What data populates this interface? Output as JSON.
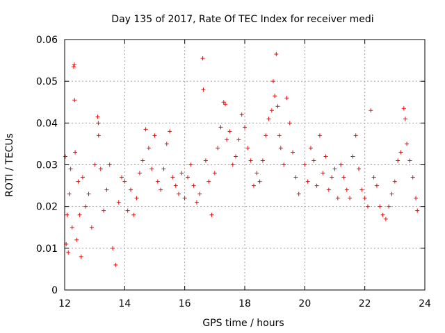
{
  "chart_data": {
    "type": "scatter",
    "title": "Day 135 of 2017, Rate Of TEC Index for receiver medi",
    "xlabel": "GPS time / hours",
    "ylabel": "ROTI / TECUs",
    "xlim": [
      12,
      24
    ],
    "ylim": [
      0,
      0.06
    ],
    "xticks": [
      12,
      14,
      16,
      18,
      20,
      22,
      24
    ],
    "yticks": [
      0,
      0.01,
      0.02,
      0.03,
      0.04,
      0.05,
      0.06
    ],
    "xtick_labels": [
      "12",
      "14",
      "16",
      "18",
      "20",
      "22",
      "24"
    ],
    "ytick_labels": [
      "0",
      "0.01",
      "0.02",
      "0.03",
      "0.04",
      "0.05",
      "0.06"
    ],
    "grid": true,
    "marker": "+",
    "color": "#ff0000",
    "series": [
      {
        "name": "ROTI",
        "points": [
          [
            12.02,
            0.032
          ],
          [
            12.05,
            0.011
          ],
          [
            12.08,
            0.018
          ],
          [
            12.12,
            0.009
          ],
          [
            12.15,
            0.023
          ],
          [
            12.2,
            0.029
          ],
          [
            12.25,
            0.015
          ],
          [
            12.3,
            0.0535
          ],
          [
            12.32,
            0.054
          ],
          [
            12.33,
            0.0455
          ],
          [
            12.35,
            0.033
          ],
          [
            12.4,
            0.012
          ],
          [
            12.45,
            0.026
          ],
          [
            12.5,
            0.018
          ],
          [
            12.55,
            0.008
          ],
          [
            12.6,
            0.027
          ],
          [
            12.7,
            0.02
          ],
          [
            12.8,
            0.023
          ],
          [
            12.9,
            0.015
          ],
          [
            13.0,
            0.03
          ],
          [
            13.1,
            0.0415
          ],
          [
            13.12,
            0.04
          ],
          [
            13.13,
            0.037
          ],
          [
            13.2,
            0.029
          ],
          [
            13.3,
            0.019
          ],
          [
            13.4,
            0.024
          ],
          [
            13.5,
            0.03
          ],
          [
            13.6,
            0.01
          ],
          [
            13.7,
            0.006
          ],
          [
            13.8,
            0.021
          ],
          [
            13.9,
            0.027
          ],
          [
            14.0,
            0.026
          ],
          [
            14.1,
            0.019
          ],
          [
            14.2,
            0.024
          ],
          [
            14.3,
            0.018
          ],
          [
            14.4,
            0.022
          ],
          [
            14.5,
            0.028
          ],
          [
            14.6,
            0.031
          ],
          [
            14.7,
            0.0385
          ],
          [
            14.8,
            0.034
          ],
          [
            14.9,
            0.029
          ],
          [
            15.0,
            0.037
          ],
          [
            15.1,
            0.026
          ],
          [
            15.2,
            0.024
          ],
          [
            15.3,
            0.029
          ],
          [
            15.4,
            0.035
          ],
          [
            15.5,
            0.038
          ],
          [
            15.6,
            0.027
          ],
          [
            15.7,
            0.025
          ],
          [
            15.8,
            0.023
          ],
          [
            15.9,
            0.028
          ],
          [
            16.0,
            0.022
          ],
          [
            16.1,
            0.027
          ],
          [
            16.2,
            0.03
          ],
          [
            16.3,
            0.025
          ],
          [
            16.4,
            0.021
          ],
          [
            16.5,
            0.023
          ],
          [
            16.6,
            0.0555
          ],
          [
            16.62,
            0.048
          ],
          [
            16.7,
            0.031
          ],
          [
            16.8,
            0.026
          ],
          [
            16.9,
            0.018
          ],
          [
            17.0,
            0.028
          ],
          [
            17.1,
            0.034
          ],
          [
            17.2,
            0.039
          ],
          [
            17.3,
            0.045
          ],
          [
            17.35,
            0.0445
          ],
          [
            17.4,
            0.036
          ],
          [
            17.5,
            0.038
          ],
          [
            17.6,
            0.03
          ],
          [
            17.7,
            0.032
          ],
          [
            17.8,
            0.036
          ],
          [
            17.9,
            0.042
          ],
          [
            18.0,
            0.039
          ],
          [
            18.1,
            0.034
          ],
          [
            18.2,
            0.031
          ],
          [
            18.3,
            0.025
          ],
          [
            18.4,
            0.028
          ],
          [
            18.5,
            0.026
          ],
          [
            18.6,
            0.031
          ],
          [
            18.7,
            0.037
          ],
          [
            18.8,
            0.041
          ],
          [
            18.9,
            0.043
          ],
          [
            18.95,
            0.05
          ],
          [
            19.0,
            0.0465
          ],
          [
            19.05,
            0.0565
          ],
          [
            19.1,
            0.044
          ],
          [
            19.15,
            0.037
          ],
          [
            19.2,
            0.034
          ],
          [
            19.3,
            0.03
          ],
          [
            19.4,
            0.046
          ],
          [
            19.5,
            0.04
          ],
          [
            19.6,
            0.033
          ],
          [
            19.7,
            0.027
          ],
          [
            19.8,
            0.023
          ],
          [
            20.0,
            0.03
          ],
          [
            20.1,
            0.026
          ],
          [
            20.2,
            0.034
          ],
          [
            20.3,
            0.031
          ],
          [
            20.4,
            0.025
          ],
          [
            20.5,
            0.037
          ],
          [
            20.6,
            0.028
          ],
          [
            20.7,
            0.032
          ],
          [
            20.8,
            0.024
          ],
          [
            20.9,
            0.027
          ],
          [
            21.0,
            0.029
          ],
          [
            21.1,
            0.022
          ],
          [
            21.2,
            0.03
          ],
          [
            21.3,
            0.027
          ],
          [
            21.4,
            0.024
          ],
          [
            21.5,
            0.022
          ],
          [
            21.6,
            0.032
          ],
          [
            21.7,
            0.037
          ],
          [
            21.8,
            0.029
          ],
          [
            21.9,
            0.024
          ],
          [
            22.0,
            0.022
          ],
          [
            22.1,
            0.02
          ],
          [
            22.2,
            0.043
          ],
          [
            22.3,
            0.027
          ],
          [
            22.4,
            0.025
          ],
          [
            22.5,
            0.02
          ],
          [
            22.6,
            0.018
          ],
          [
            22.7,
            0.017
          ],
          [
            22.8,
            0.02
          ],
          [
            22.9,
            0.023
          ],
          [
            23.0,
            0.026
          ],
          [
            23.1,
            0.031
          ],
          [
            23.2,
            0.033
          ],
          [
            23.3,
            0.0435
          ],
          [
            23.35,
            0.041
          ],
          [
            23.4,
            0.035
          ],
          [
            23.5,
            0.031
          ],
          [
            23.6,
            0.027
          ],
          [
            23.7,
            0.022
          ],
          [
            23.75,
            0.019
          ]
        ]
      }
    ]
  }
}
